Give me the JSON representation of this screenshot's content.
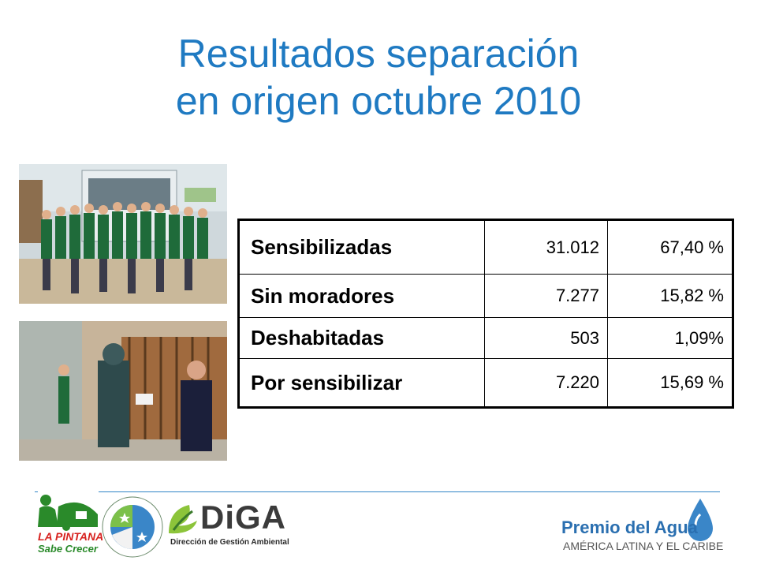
{
  "title": {
    "line1": "Resultados separación",
    "line2": "en origen octubre 2010"
  },
  "results_table": [
    {
      "label": "Sensibilizadas",
      "count": "31.012",
      "percent": "67,40 %"
    },
    {
      "label": "Sin moradores",
      "count": "7.277",
      "percent": "15,82 %"
    },
    {
      "label": "Deshabitadas",
      "count": "503",
      "percent": "1,09%"
    },
    {
      "label": "Por sensibilizar",
      "count": "7.220",
      "percent": "15,69 %"
    }
  ],
  "logos": {
    "la_pintana": {
      "line1": "LA PINTANA",
      "line2": "Sabe Crecer"
    },
    "diga": {
      "name": "DiGA",
      "subtitle": "Dirección de Gestión Ambiental"
    },
    "premio": {
      "title": "Premio del Agua",
      "subtitle": "AMÉRICA LATINA Y EL CARIBE"
    }
  },
  "colors": {
    "title": "#1f7ac2",
    "rule": "#2f83c6",
    "green": "#2a8a2a",
    "red": "#d7221f"
  }
}
